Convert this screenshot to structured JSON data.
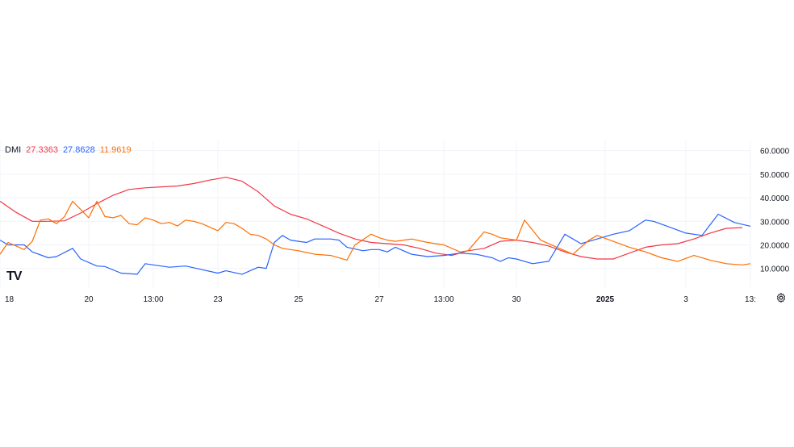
{
  "legend": {
    "name": "DMI",
    "values": [
      "27.3363",
      "27.8628",
      "11.9619"
    ]
  },
  "logo_text": "TV",
  "colors": {
    "adx": "#f23645",
    "plus_di": "#2962ff",
    "minus_di": "#ff6d00",
    "grid": "#f0f3fa",
    "text": "#131722"
  },
  "icons": {
    "settings": "gear-icon"
  },
  "chart_data": {
    "type": "line",
    "title": "DMI",
    "xlabel": "",
    "ylabel": "",
    "ylim": [
      2,
      64
    ],
    "y_ticks": [
      "60.0000",
      "50.0000",
      "40.0000",
      "30.0000",
      "20.0000",
      "10.0000"
    ],
    "x_ticks": [
      "18",
      "20",
      "13:00",
      "23",
      "25",
      "27",
      "13:00",
      "30",
      "2025",
      "3",
      "13:"
    ],
    "x_tick_positions": [
      0,
      11,
      19,
      27,
      37,
      47,
      55,
      64,
      75,
      85,
      93
    ],
    "x_domain": [
      0,
      93
    ],
    "grid": true,
    "legend_position": "top-left",
    "series": [
      {
        "color": "#f23645",
        "x": [
          0,
          2,
          4,
          6,
          8,
          10,
          12,
          14,
          16,
          18,
          20,
          22,
          24,
          26,
          28,
          30,
          32,
          34,
          36,
          38,
          40,
          42,
          44,
          46,
          48,
          50,
          52,
          54,
          56,
          58,
          60,
          62,
          64,
          66,
          68,
          70,
          72,
          74,
          76,
          78,
          80,
          82,
          84,
          86,
          88,
          90,
          92
        ],
        "values": [
          38.5,
          33.8,
          30.0,
          30.0,
          30.2,
          33.5,
          37.5,
          41.0,
          43.5,
          44.2,
          44.6,
          45.0,
          46.0,
          47.5,
          48.7,
          47.0,
          42.5,
          36.5,
          33.0,
          31.0,
          28.0,
          25.0,
          22.5,
          21.0,
          20.5,
          20.0,
          18.5,
          16.5,
          15.5,
          17.5,
          18.5,
          21.5,
          22.0,
          21.0,
          19.5,
          17.0,
          15.0,
          14.0,
          14.0,
          16.5,
          19.0,
          20.0,
          20.5,
          22.5,
          25.0,
          27.0,
          27.3
        ]
      },
      {
        "color": "#2962ff",
        "x": [
          0,
          1,
          3,
          4,
          6,
          7,
          9,
          10,
          12,
          13,
          15,
          17,
          18,
          19,
          21,
          23,
          25,
          27,
          28,
          30,
          32,
          33,
          34,
          35,
          36,
          37,
          38,
          39,
          41,
          42,
          43,
          45,
          46,
          47,
          48,
          49,
          51,
          53,
          55,
          57,
          59,
          61,
          62,
          63,
          64,
          66,
          68,
          70,
          72,
          74,
          76,
          78,
          80,
          81,
          83,
          85,
          87,
          89,
          91,
          93
        ],
        "values": [
          22.0,
          20.0,
          20.0,
          17.0,
          14.5,
          15.0,
          18.5,
          14.0,
          11.0,
          10.8,
          8.0,
          7.5,
          12.0,
          11.5,
          10.5,
          11.0,
          9.5,
          8.0,
          9.0,
          7.5,
          10.5,
          10.0,
          21.0,
          24.0,
          22.0,
          21.5,
          21.0,
          22.5,
          22.5,
          22.0,
          19.0,
          17.5,
          18.0,
          18.0,
          17.0,
          19.0,
          16.0,
          15.0,
          15.5,
          16.5,
          16.0,
          14.5,
          13.0,
          14.5,
          14.0,
          12.0,
          13.0,
          24.5,
          20.5,
          22.5,
          24.5,
          26.0,
          30.5,
          30.0,
          27.5,
          25.0,
          24.0,
          33.0,
          29.5,
          27.9
        ]
      },
      {
        "color": "#ff6d00",
        "x": [
          0,
          1,
          3,
          4,
          5,
          6,
          7,
          8,
          9,
          10,
          11,
          12,
          13,
          14,
          15,
          16,
          17,
          18,
          19,
          20,
          21,
          22,
          23,
          24,
          25,
          26,
          27,
          28,
          29,
          30,
          31,
          32,
          33,
          34,
          35,
          37,
          39,
          41,
          43,
          44,
          46,
          47,
          48,
          49,
          51,
          53,
          55,
          57,
          58,
          60,
          61,
          62,
          63,
          64,
          65,
          67,
          69,
          71,
          73,
          74,
          76,
          78,
          80,
          82,
          84,
          86,
          88,
          90,
          92,
          93
        ],
        "values": [
          16.0,
          21.0,
          18.0,
          21.5,
          30.5,
          31.0,
          29.0,
          32.0,
          38.5,
          35.0,
          31.5,
          38.5,
          32.0,
          31.5,
          32.5,
          29.0,
          28.5,
          31.5,
          30.5,
          29.0,
          29.5,
          28.0,
          30.5,
          30.0,
          29.0,
          27.5,
          26.0,
          29.5,
          29.0,
          27.0,
          24.5,
          24.0,
          22.5,
          20.0,
          18.5,
          17.5,
          16.0,
          15.5,
          13.5,
          20.0,
          24.5,
          23.0,
          22.0,
          21.5,
          22.5,
          21.0,
          20.0,
          17.0,
          17.5,
          25.5,
          24.5,
          23.0,
          22.5,
          22.0,
          30.5,
          22.0,
          19.0,
          16.0,
          22.0,
          24.0,
          21.5,
          19.0,
          17.0,
          14.5,
          13.0,
          15.5,
          13.5,
          12.0,
          11.5,
          12.0
        ]
      }
    ]
  }
}
